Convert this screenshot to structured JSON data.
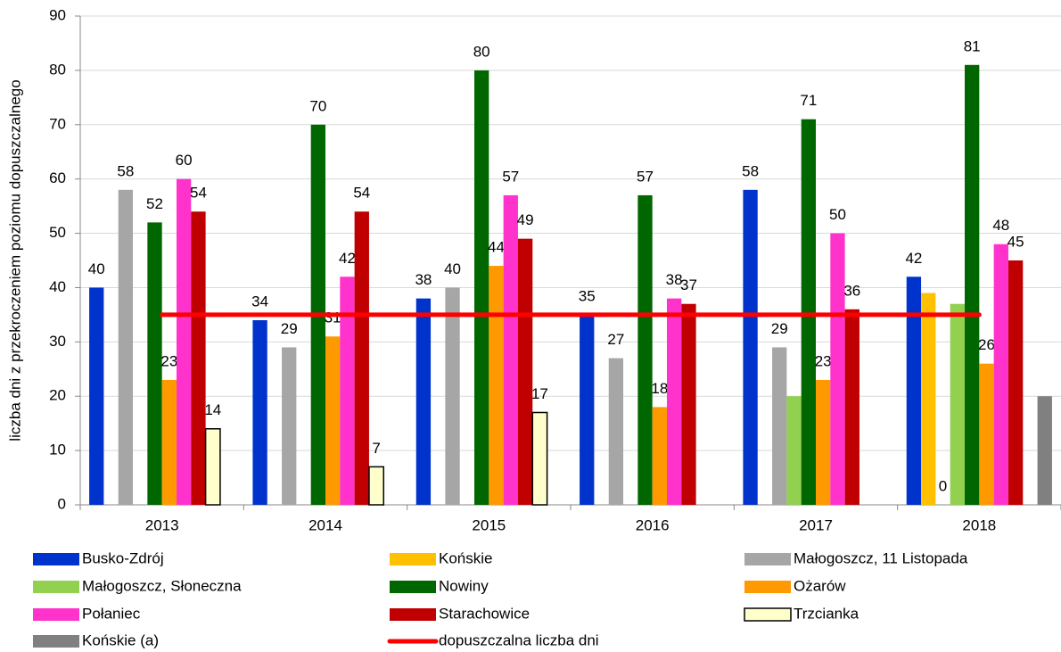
{
  "chart_data": {
    "type": "bar",
    "y_label": "liczba dni z przekroczeniem poziomu dopuszczalnego",
    "categories": [
      "2013",
      "2014",
      "2015",
      "2016",
      "2017",
      "2018"
    ],
    "ylim": [
      0,
      90
    ],
    "yticks": [
      0,
      10,
      20,
      30,
      40,
      50,
      60,
      70,
      80,
      90
    ],
    "grid": true,
    "legend": "bottom",
    "series": [
      {
        "name": "Busko-Zdrój",
        "color": "#0033cc",
        "values": [
          40,
          34,
          38,
          35,
          58,
          42
        ],
        "value_labels": [
          "40",
          "34",
          "38",
          "35",
          "58",
          "42"
        ]
      },
      {
        "name": "Końskie",
        "color": "#ffc000",
        "values": [
          null,
          null,
          null,
          null,
          null,
          39
        ],
        "value_labels": [
          null,
          null,
          null,
          null,
          null,
          null
        ]
      },
      {
        "name": "Małogoszcz, 11 Listopada",
        "color": "#a6a6a6",
        "values": [
          58,
          29,
          40,
          27,
          29,
          0
        ],
        "value_labels": [
          "58",
          "29",
          "40",
          "27",
          "29",
          "0"
        ]
      },
      {
        "name": "Małogoszcz, Słoneczna",
        "color": "#92d050",
        "values": [
          null,
          null,
          null,
          null,
          20,
          37
        ],
        "value_labels": [
          null,
          null,
          null,
          null,
          null,
          null
        ]
      },
      {
        "name": "Nowiny",
        "color": "#006600",
        "values": [
          52,
          70,
          80,
          57,
          71,
          81
        ],
        "value_labels": [
          "52",
          "70",
          "80",
          "57",
          "71",
          "81"
        ]
      },
      {
        "name": "Ożarów",
        "color": "#ff9900",
        "values": [
          23,
          31,
          44,
          18,
          23,
          26
        ],
        "value_labels": [
          "23",
          "31",
          "44",
          "18",
          "23",
          "26"
        ]
      },
      {
        "name": "Połaniec",
        "color": "#ff33cc",
        "values": [
          60,
          42,
          57,
          38,
          50,
          48
        ],
        "value_labels": [
          "60",
          "42",
          "57",
          "38",
          "50",
          "48"
        ]
      },
      {
        "name": "Starachowice",
        "color": "#c00000",
        "values": [
          54,
          54,
          49,
          37,
          36,
          45
        ],
        "value_labels": [
          "54",
          "54",
          "49",
          "37",
          "36",
          "45"
        ]
      },
      {
        "name": "Trzcianka",
        "color": "#ffffcc",
        "values": [
          14,
          7,
          17,
          null,
          null,
          null
        ],
        "value_labels": [
          "14",
          "7",
          "17",
          null,
          null,
          null
        ]
      },
      {
        "name": "Końskie (a)",
        "color": "#808080",
        "values": [
          null,
          null,
          null,
          null,
          null,
          20
        ],
        "value_labels": [
          null,
          null,
          null,
          null,
          null,
          null
        ]
      },
      {
        "name": "dopuszczalna liczba dni",
        "type": "line",
        "color": "#ff0000",
        "values": [
          35,
          35,
          35,
          35,
          35,
          35
        ]
      }
    ]
  }
}
